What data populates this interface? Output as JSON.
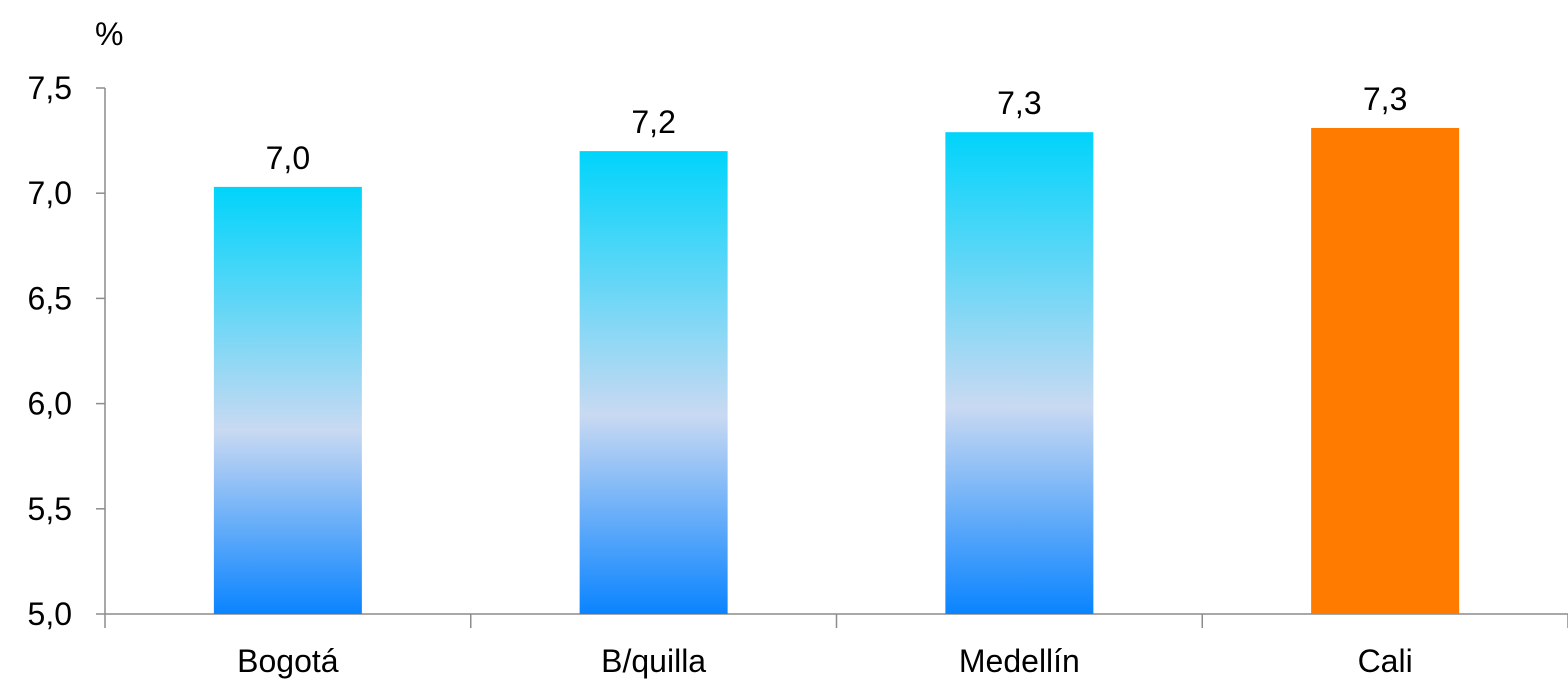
{
  "chart_data": {
    "type": "bar",
    "ylabel": "%",
    "categories": [
      "Bogotá",
      "B/quilla",
      "Medellín",
      "Cali"
    ],
    "values": [
      7.03,
      7.2,
      7.29,
      7.31
    ],
    "value_labels": [
      "7,0",
      "7,2",
      "7,3",
      "7,3"
    ],
    "ylim": [
      5.0,
      7.5
    ],
    "yticks": [
      5.0,
      5.5,
      6.0,
      6.5,
      7.0,
      7.5
    ],
    "ytick_labels": [
      "5,0",
      "5,5",
      "6,0",
      "6,5",
      "7,0",
      "7,5"
    ],
    "grid": false,
    "legend": "none",
    "bar_styles": [
      "gradient-blue",
      "gradient-blue",
      "gradient-blue",
      "solid-orange"
    ],
    "colors": {
      "gradient_top": "#00d4fb",
      "gradient_mid": "#c9d9f2",
      "gradient_bottom": "#0a84ff",
      "highlight": "#ff7b00",
      "axis": "#8c8c8c"
    }
  }
}
